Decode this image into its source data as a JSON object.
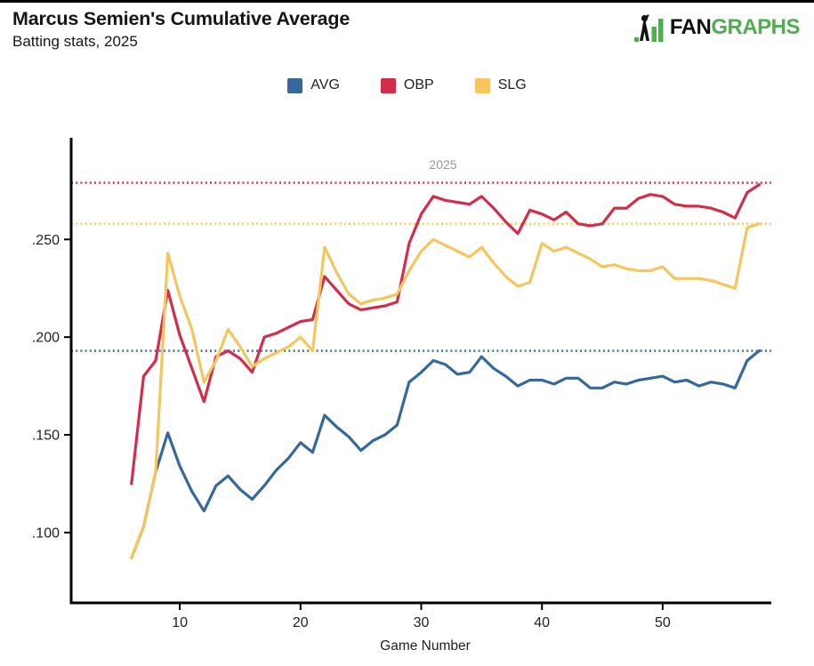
{
  "header": {
    "title": "Marcus Semien's Cumulative Average",
    "subtitle": "Batting stats, 2025"
  },
  "logo": {
    "fan": "FAN",
    "graphs": "GRAPHS",
    "green": "#4fae4d",
    "black": "#111111"
  },
  "legend": {
    "items": [
      {
        "label": "AVG",
        "color": "#35689b"
      },
      {
        "label": "OBP",
        "color": "#d22d49"
      },
      {
        "label": "SLG",
        "color": "#f5c65d"
      }
    ]
  },
  "chart_data": {
    "type": "line",
    "annotation": "2025",
    "annotation_color": "#999999",
    "xlabel": "Game Number",
    "grid": false,
    "legend_position": "top",
    "xlim": [
      1,
      59
    ],
    "ylim": [
      0.064,
      0.302
    ],
    "x_ticks": [
      "10",
      "20",
      "30",
      "40",
      "50"
    ],
    "x_tick_values": [
      10,
      20,
      30,
      40,
      50
    ],
    "y_ticks": [
      ".250",
      ".200",
      ".150",
      ".100"
    ],
    "y_tick_values": [
      0.25,
      0.2,
      0.15,
      0.1
    ],
    "x": [
      6,
      7,
      8,
      9,
      10,
      11,
      12,
      13,
      14,
      15,
      16,
      17,
      18,
      19,
      20,
      21,
      22,
      23,
      24,
      25,
      26,
      27,
      28,
      29,
      30,
      31,
      32,
      33,
      34,
      35,
      36,
      37,
      38,
      39,
      40,
      41,
      42,
      43,
      44,
      45,
      46,
      47,
      48,
      49,
      50,
      51,
      52,
      53,
      54,
      55,
      56,
      57,
      58
    ],
    "series": [
      {
        "name": "AVG",
        "color": "#35689b",
        "values": [
          0.087,
          0.103,
          0.131,
          0.151,
          0.134,
          0.121,
          0.111,
          0.124,
          0.129,
          0.122,
          0.117,
          0.124,
          0.132,
          0.138,
          0.146,
          0.141,
          0.16,
          0.154,
          0.149,
          0.142,
          0.147,
          0.15,
          0.155,
          0.177,
          0.182,
          0.188,
          0.186,
          0.181,
          0.182,
          0.19,
          0.184,
          0.18,
          0.175,
          0.178,
          0.178,
          0.176,
          0.179,
          0.179,
          0.174,
          0.174,
          0.177,
          0.176,
          0.178,
          0.179,
          0.18,
          0.177,
          0.178,
          0.175,
          0.177,
          0.176,
          0.174,
          0.188,
          0.193
        ]
      },
      {
        "name": "OBP",
        "color": "#d22d49",
        "values": [
          0.125,
          0.18,
          0.188,
          0.224,
          0.201,
          0.184,
          0.167,
          0.19,
          0.193,
          0.189,
          0.182,
          0.2,
          0.202,
          0.205,
          0.208,
          0.209,
          0.231,
          0.224,
          0.217,
          0.214,
          0.215,
          0.216,
          0.218,
          0.248,
          0.263,
          0.272,
          0.27,
          0.269,
          0.268,
          0.272,
          0.266,
          0.259,
          0.253,
          0.265,
          0.263,
          0.26,
          0.264,
          0.258,
          0.257,
          0.258,
          0.266,
          0.266,
          0.271,
          0.273,
          0.272,
          0.268,
          0.267,
          0.267,
          0.266,
          0.264,
          0.261,
          0.274,
          0.278
        ]
      },
      {
        "name": "SLG",
        "color": "#f5c65d",
        "values": [
          0.087,
          0.103,
          0.131,
          0.243,
          0.221,
          0.204,
          0.177,
          0.188,
          0.204,
          0.195,
          0.185,
          0.189,
          0.192,
          0.195,
          0.2,
          0.193,
          0.246,
          0.233,
          0.222,
          0.217,
          0.219,
          0.22,
          0.222,
          0.234,
          0.244,
          0.25,
          0.247,
          0.244,
          0.241,
          0.246,
          0.238,
          0.231,
          0.226,
          0.228,
          0.248,
          0.244,
          0.246,
          0.243,
          0.24,
          0.236,
          0.237,
          0.235,
          0.234,
          0.234,
          0.236,
          0.23,
          0.23,
          0.23,
          0.229,
          0.227,
          0.225,
          0.256,
          0.258
        ]
      }
    ],
    "reference_lines": [
      {
        "series": "AVG",
        "value": 0.193,
        "color": "#35689b",
        "style": "dotted"
      },
      {
        "series": "OBP",
        "value": 0.279,
        "color": "#d22d49",
        "style": "dotted"
      },
      {
        "series": "SLG",
        "value": 0.258,
        "color": "#f5c65d",
        "style": "dotted"
      }
    ]
  }
}
